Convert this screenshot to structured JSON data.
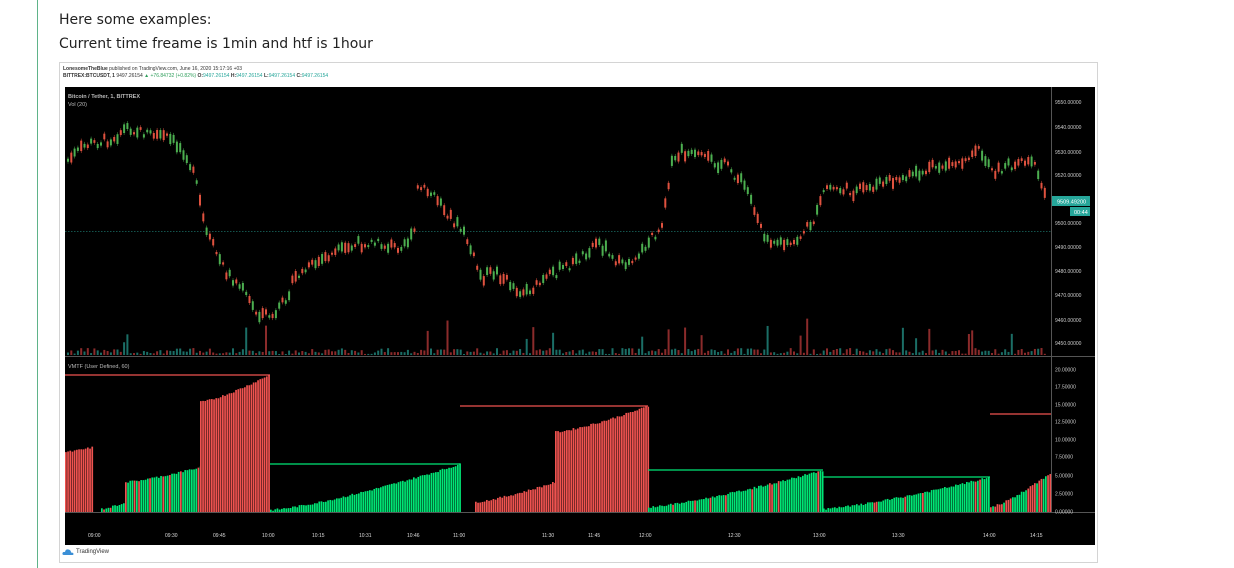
{
  "intro": {
    "line1": "Here some examples:",
    "line2": "Current time freame is 1min and htf is 1hour"
  },
  "header": {
    "publisher": "LonesomeTheBlue",
    "published_text": "published on TradingView.com, June 16, 2020 15:17:16 +03",
    "symbol": "BITTREX:BTCUSDT, 1",
    "last": "9497.26154",
    "change": "+76.84732 (+0.82%)",
    "o_label": "O:",
    "o": "9497.26154",
    "h_label": "H:",
    "h": "9497.26154",
    "l_label": "L:",
    "l": "9497.26154",
    "c_label": "C:",
    "c": "9497.26154"
  },
  "pane1": {
    "title": "Bitcoin / Tether, 1, BITTREX",
    "volume_label": "Vol (20)"
  },
  "pane2": {
    "title": "VMTF (User Defined, 60)"
  },
  "price_axis": [
    "9550.00000",
    "9540.00000",
    "9530.00000",
    "9520.00000",
    "9500.00000",
    "9490.00000",
    "9480.00000",
    "9470.00000",
    "9460.00000",
    "9450.00000"
  ],
  "price_tag": {
    "price": "9509.49200",
    "countdown": "00:44"
  },
  "vmtf_axis": [
    "20.00000",
    "17.50000",
    "15.00000",
    "12.50000",
    "10.00000",
    "7.50000",
    "5.00000",
    "2.50000",
    "0.00000"
  ],
  "time_axis": [
    "09:00",
    "09:30",
    "09:45",
    "10:00",
    "10:15",
    "10:31",
    "10:46",
    "11:00",
    "11:30",
    "11:45",
    "12:00",
    "12:30",
    "13:00",
    "13:30",
    "14:00",
    "14:15"
  ],
  "footer": {
    "brand": "TradingView"
  },
  "colors": {
    "up": "#26a69a",
    "up_bright": "#00e676",
    "down": "#ef5350",
    "background": "#000000"
  }
}
